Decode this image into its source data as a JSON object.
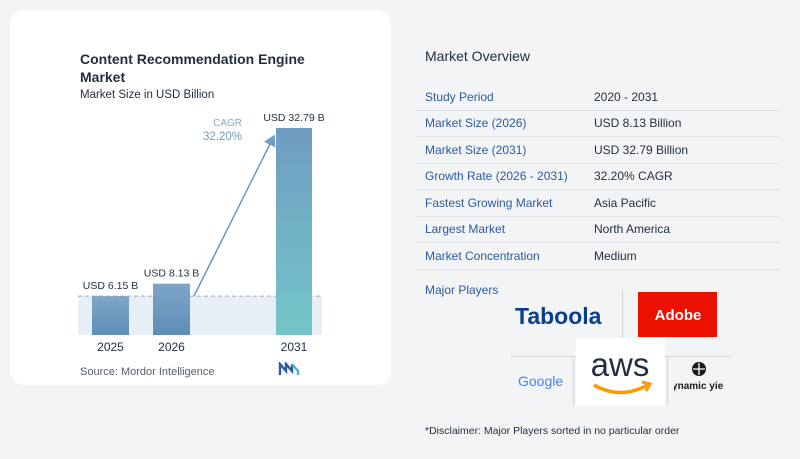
{
  "chart_data": {
    "type": "bar",
    "title": "Content Recommendation Engine Market",
    "subtitle": "Market Size in USD Billion",
    "categories": [
      "2025",
      "2026",
      "2031"
    ],
    "values": [
      6.15,
      8.13,
      32.79
    ],
    "value_labels": [
      "USD 6.15 B",
      "USD 8.13 B",
      "USD 32.79 B"
    ],
    "cagr_label": "CAGR",
    "cagr_value": "32.20%",
    "source": "Source: Mordor Intelligence",
    "colors": {
      "bar_top": "#7da6c8",
      "bar_bottom": "#5e8db6",
      "bar_2031_top": "#6f9cc1",
      "bar_2031_bottom": "#74c6c9",
      "shade": "#e8eef5",
      "arrow": "#6f9cc1"
    }
  },
  "overview": {
    "title": "Market Overview",
    "rows": [
      {
        "key": "Study Period",
        "value": "2020 - 2031"
      },
      {
        "key": "Market Size (2026)",
        "value": "USD 8.13 Billion"
      },
      {
        "key": "Market Size (2031)",
        "value": "USD 32.79 Billion"
      },
      {
        "key": "Growth Rate (2026 - 2031)",
        "value": "32.20% CAGR"
      },
      {
        "key": "Fastest Growing Market",
        "value": "Asia Pacific"
      },
      {
        "key": "Largest Market",
        "value": "North America"
      },
      {
        "key": "Market Concentration",
        "value": "Medium"
      }
    ]
  },
  "players": {
    "label": "Major Players",
    "logos": [
      "Taboola",
      "Adobe",
      "Google",
      "aws",
      "dynamic yield"
    ]
  },
  "disclaimer": "*Disclaimer: Major Players sorted in no particular order"
}
